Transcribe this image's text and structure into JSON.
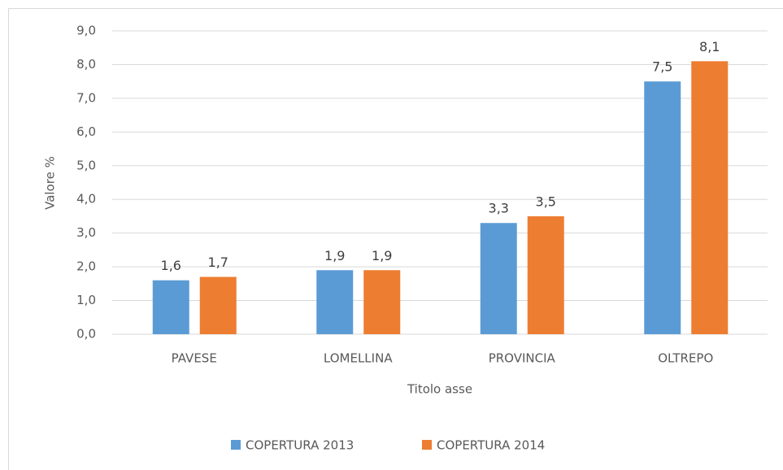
{
  "chart_data": {
    "type": "bar",
    "categories": [
      "PAVESE",
      "LOMELLINA",
      "PROVINCIA",
      "OLTREPO"
    ],
    "series": [
      {
        "name": "COPERTURA 2013",
        "color": "#5b9bd5",
        "values": [
          1.6,
          1.9,
          3.3,
          7.5
        ],
        "value_labels": [
          "1,6",
          "1,9",
          "3,3",
          "7,5"
        ]
      },
      {
        "name": "COPERTURA 2014",
        "color": "#ed7d31",
        "values": [
          1.7,
          1.9,
          3.5,
          8.1
        ],
        "value_labels": [
          "1,7",
          "1,9",
          "3,5",
          "8,1"
        ]
      }
    ],
    "xlabel": "Titolo asse",
    "ylabel": "Valore %",
    "ylim": [
      0,
      9
    ],
    "yticks": [
      {
        "value": 0,
        "label": "0,0"
      },
      {
        "value": 1,
        "label": "1,0"
      },
      {
        "value": 2,
        "label": "2,0"
      },
      {
        "value": 3,
        "label": "3,0"
      },
      {
        "value": 4,
        "label": "4,0"
      },
      {
        "value": 5,
        "label": "5,0"
      },
      {
        "value": 6,
        "label": "6,0"
      },
      {
        "value": 7,
        "label": "7,0"
      },
      {
        "value": 8,
        "label": "8,0"
      },
      {
        "value": 9,
        "label": "9,0"
      }
    ],
    "grid": true,
    "legend": "bottom"
  }
}
